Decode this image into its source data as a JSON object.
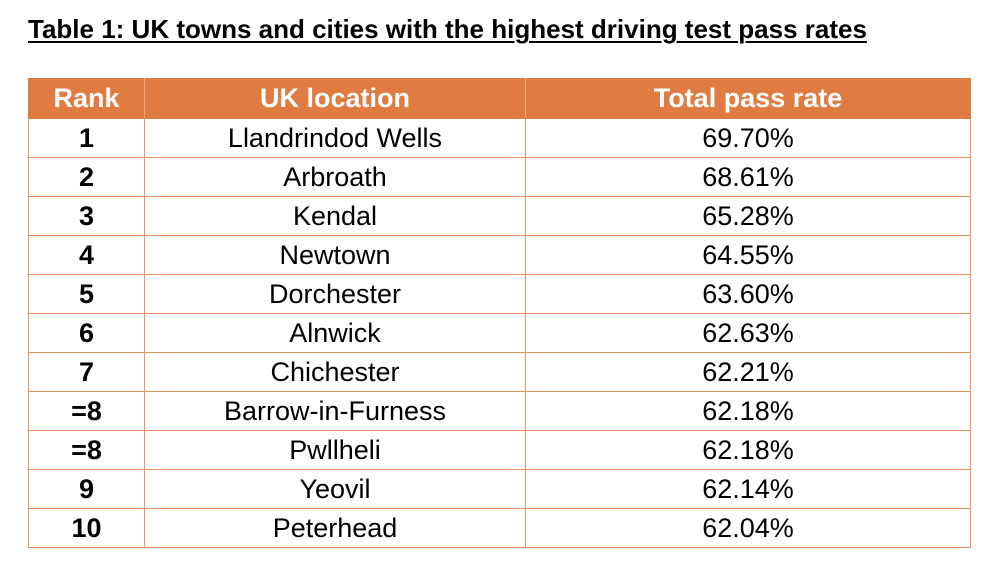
{
  "caption": "Table 1: UK towns and cities with the highest driving test pass rates",
  "colors": {
    "header_bg": "#e07b42",
    "header_text": "#ffffff",
    "border": "#e8935f"
  },
  "table": {
    "headers": [
      "Rank",
      "UK location",
      "Total pass rate"
    ],
    "rows": [
      {
        "rank": "1",
        "location": "Llandrindod Wells",
        "rate": "69.70%"
      },
      {
        "rank": "2",
        "location": "Arbroath",
        "rate": "68.61%"
      },
      {
        "rank": "3",
        "location": "Kendal",
        "rate": "65.28%"
      },
      {
        "rank": "4",
        "location": "Newtown",
        "rate": "64.55%"
      },
      {
        "rank": "5",
        "location": "Dorchester",
        "rate": "63.60%"
      },
      {
        "rank": "6",
        "location": "Alnwick",
        "rate": "62.63%"
      },
      {
        "rank": "7",
        "location": "Chichester",
        "rate": "62.21%"
      },
      {
        "rank": "=8",
        "location": "Barrow-in-Furness",
        "rate": "62.18%"
      },
      {
        "rank": "=8",
        "location": "Pwllheli",
        "rate": "62.18%"
      },
      {
        "rank": "9",
        "location": "Yeovil",
        "rate": "62.14%"
      },
      {
        "rank": "10",
        "location": "Peterhead",
        "rate": "62.04%"
      }
    ]
  }
}
